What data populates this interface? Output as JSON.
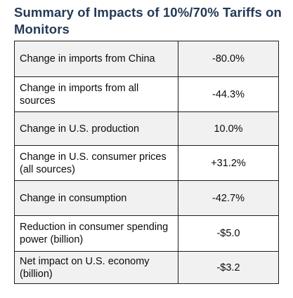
{
  "title": "Summary of Impacts of 10%/70% Tariffs on Monitors",
  "rows": [
    {
      "label": "Change in imports from China",
      "value": "-80.0%"
    },
    {
      "label": "Change in imports from all sources",
      "value": "-44.3%"
    },
    {
      "label": "Change in U.S. production",
      "value": "10.0%"
    },
    {
      "label": "Change in U.S. consumer prices (all sources)",
      "value": "+31.2%"
    },
    {
      "label": "Change in consumption",
      "value": "-42.7%"
    },
    {
      "label": "Reduction in consumer spending power (billion)",
      "value": "-$5.0"
    },
    {
      "label": "Net impact on U.S. economy (billion)",
      "value": "-$3.2"
    }
  ]
}
